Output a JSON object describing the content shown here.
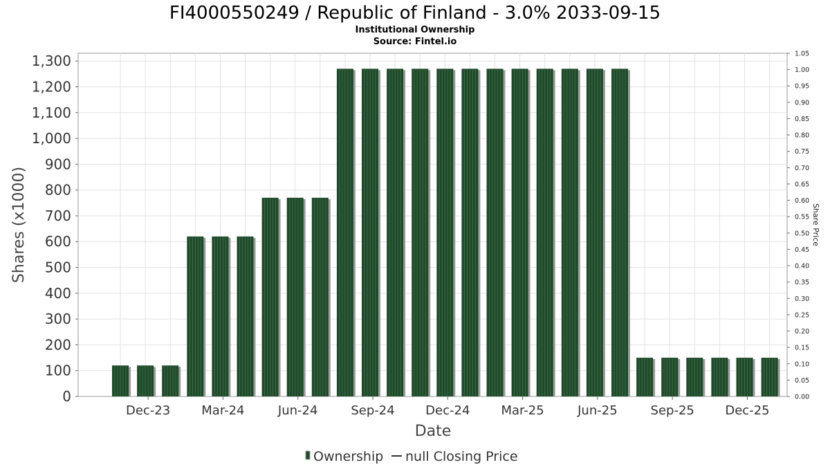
{
  "chart_data": {
    "type": "bar",
    "title": "FI4000550249 / Republic of Finland - 3.0% 2033-09-15",
    "subtitle": "Institutional Ownership",
    "source": "Source: Fintel.io",
    "xlabel": "Date",
    "ylabel": "Shares (x1000)",
    "ylabel_right": "Share Price",
    "ylim": [
      0,
      1330
    ],
    "y_ticks": [
      0,
      100,
      200,
      300,
      400,
      500,
      600,
      700,
      800,
      900,
      1000,
      1100,
      1200,
      1300
    ],
    "y_tick_labels": [
      "0",
      "100",
      "200",
      "300",
      "400",
      "500",
      "600",
      "700",
      "800",
      "900",
      "1,000",
      "1,100",
      "1,200",
      "1,300"
    ],
    "y2lim": [
      0,
      1.05
    ],
    "y2_ticks": [
      "0.00",
      "0.05",
      "0.10",
      "0.15",
      "0.20",
      "0.25",
      "0.30",
      "0.35",
      "0.40",
      "0.45",
      "0.50",
      "0.55",
      "0.60",
      "0.65",
      "0.70",
      "0.75",
      "0.80",
      "0.85",
      "0.90",
      "0.95",
      "1.00",
      "1.05"
    ],
    "x_tick_labels": [
      "Dec-23",
      "Mar-24",
      "Jun-24",
      "Sep-24",
      "Dec-24",
      "Mar-25",
      "Jun-25",
      "Sep-25",
      "Dec-25"
    ],
    "categories": [
      "Nov-23",
      "Dec-23",
      "Jan-24",
      "Feb-24",
      "Mar-24",
      "Apr-24",
      "May-24",
      "Jun-24",
      "Jul-24",
      "Aug-24",
      "Sep-24",
      "Oct-24",
      "Nov-24",
      "Dec-24",
      "Jan-25",
      "Feb-25",
      "Mar-25",
      "Apr-25",
      "May-25",
      "Jun-25",
      "Jul-25",
      "Aug-25",
      "Sep-25",
      "Oct-25",
      "Nov-25",
      "Dec-25",
      "Jan-26"
    ],
    "series": [
      {
        "name": "Ownership",
        "color": "#1f4a2a",
        "values": [
          120,
          120,
          120,
          620,
          620,
          620,
          770,
          770,
          770,
          1270,
          1270,
          1270,
          1270,
          1270,
          1270,
          1270,
          1270,
          1270,
          1270,
          1270,
          1270,
          150,
          150,
          150,
          150,
          150,
          150
        ]
      }
    ],
    "grid": true,
    "legend": {
      "position": "bottom-center",
      "items": [
        "Ownership",
        "null Closing Price"
      ]
    }
  }
}
